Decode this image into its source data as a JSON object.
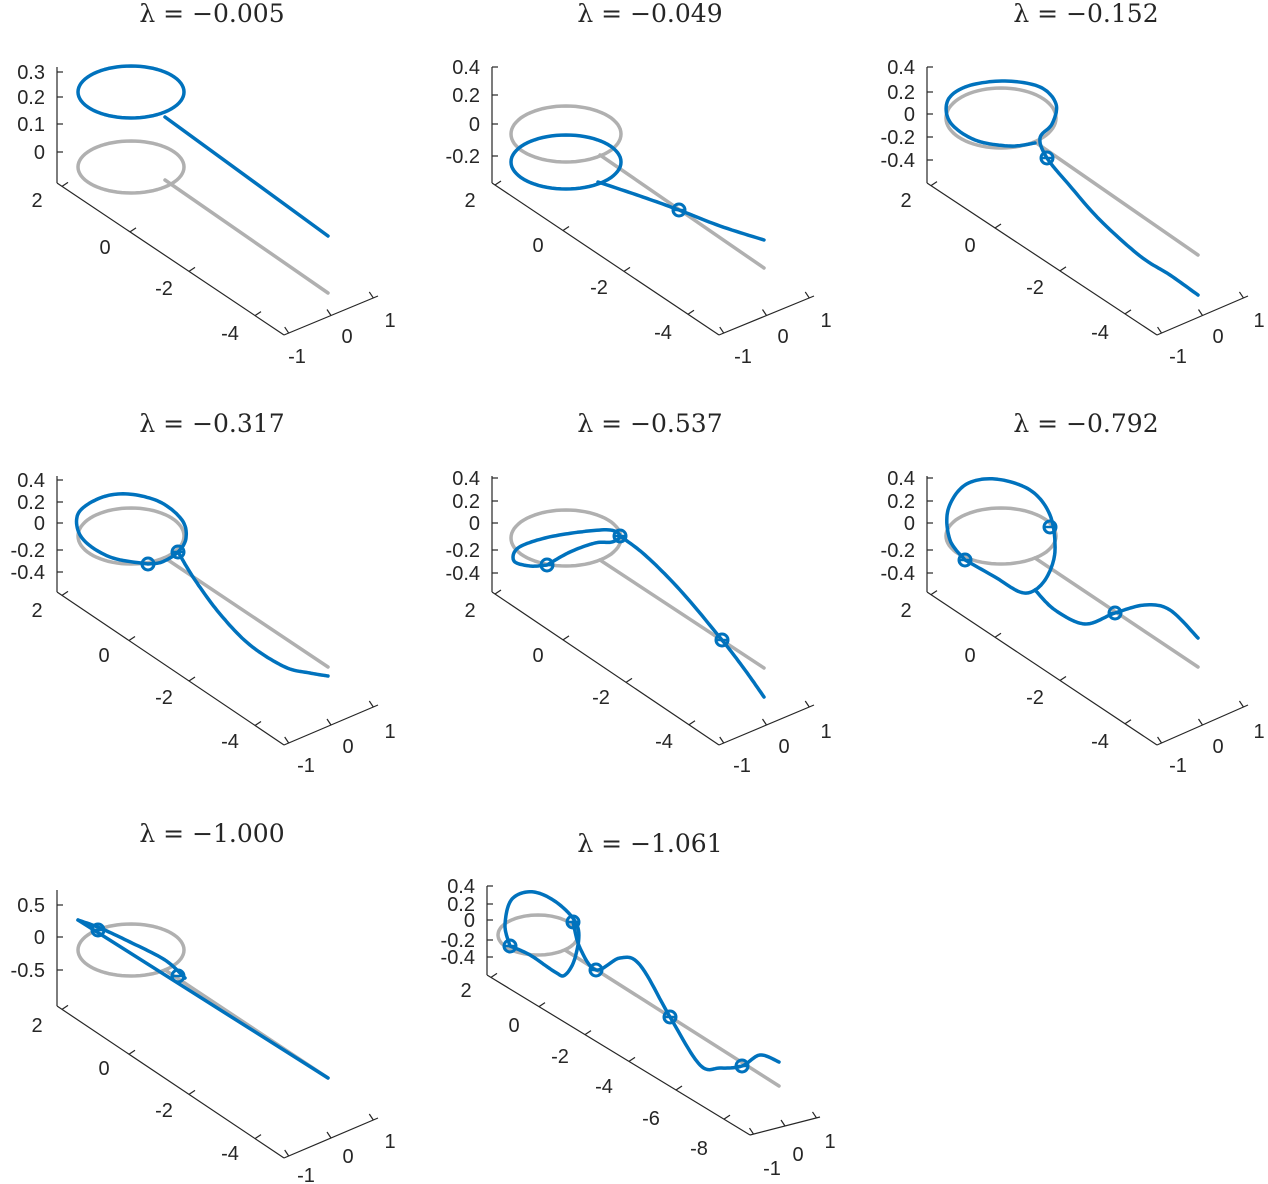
{
  "figure": {
    "colors": {
      "curve": "#0072bd",
      "reference": "#b0b0b0",
      "axis": "#262626",
      "background": "#ffffff"
    }
  },
  "chart_data": [
    {
      "type": "line3d",
      "title": "λ = −0.005",
      "x_ticks": [
        "2",
        "0",
        "-2",
        "-4"
      ],
      "y_ticks": [
        "-1",
        "0",
        "1"
      ],
      "z_ticks": [
        "0.3",
        "0.2",
        "0.1",
        "0"
      ],
      "series": [
        {
          "color": "#b0b0b0",
          "description": "reference: unit loop with straight tail"
        },
        {
          "color": "#0072bd",
          "description": "deformed curve"
        }
      ],
      "marker_count": 0
    },
    {
      "type": "line3d",
      "title": "λ = −0.049",
      "x_ticks": [
        "2",
        "0",
        "-2",
        "-4"
      ],
      "y_ticks": [
        "-1",
        "0",
        "1"
      ],
      "z_ticks": [
        "0.4",
        "0.2",
        "0",
        "-0.2"
      ],
      "series": [
        {
          "color": "#b0b0b0"
        },
        {
          "color": "#0072bd"
        }
      ],
      "marker_count": 1
    },
    {
      "type": "line3d",
      "title": "λ = −0.152",
      "x_ticks": [
        "2",
        "0",
        "-2",
        "-4"
      ],
      "y_ticks": [
        "-1",
        "0",
        "1"
      ],
      "z_ticks": [
        "0.4",
        "0.2",
        "0",
        "-0.2",
        "-0.4"
      ],
      "series": [
        {
          "color": "#b0b0b0"
        },
        {
          "color": "#0072bd"
        }
      ],
      "marker_count": 1
    },
    {
      "type": "line3d",
      "title": "λ = −0.317",
      "x_ticks": [
        "2",
        "0",
        "-2",
        "-4"
      ],
      "y_ticks": [
        "-1",
        "0",
        "1"
      ],
      "z_ticks": [
        "0.4",
        "0.2",
        "0",
        "-0.2",
        "-0.4"
      ],
      "series": [
        {
          "color": "#b0b0b0"
        },
        {
          "color": "#0072bd"
        }
      ],
      "marker_count": 2
    },
    {
      "type": "line3d",
      "title": "λ = −0.537",
      "x_ticks": [
        "2",
        "0",
        "-2",
        "-4"
      ],
      "y_ticks": [
        "-1",
        "0",
        "1"
      ],
      "z_ticks": [
        "0.4",
        "0.2",
        "0",
        "-0.2",
        "-0.4"
      ],
      "series": [
        {
          "color": "#b0b0b0"
        },
        {
          "color": "#0072bd"
        }
      ],
      "marker_count": 3
    },
    {
      "type": "line3d",
      "title": "λ = −0.792",
      "x_ticks": [
        "2",
        "0",
        "-2",
        "-4"
      ],
      "y_ticks": [
        "-1",
        "0",
        "1"
      ],
      "z_ticks": [
        "0.4",
        "0.2",
        "0",
        "-0.2",
        "-0.4"
      ],
      "series": [
        {
          "color": "#b0b0b0"
        },
        {
          "color": "#0072bd"
        }
      ],
      "marker_count": 3
    },
    {
      "type": "line3d",
      "title": "λ = −1.000",
      "x_ticks": [
        "2",
        "0",
        "-2",
        "-4"
      ],
      "y_ticks": [
        "-1",
        "0",
        "1"
      ],
      "z_ticks": [
        "0.5",
        "0",
        "-0.5"
      ],
      "series": [
        {
          "color": "#b0b0b0"
        },
        {
          "color": "#0072bd"
        }
      ],
      "marker_count": 2
    },
    {
      "type": "line3d",
      "title": "λ = −1.061",
      "x_ticks": [
        "2",
        "0",
        "-2",
        "-4",
        "-6",
        "-8"
      ],
      "y_ticks": [
        "-1",
        "0",
        "1"
      ],
      "z_ticks": [
        "0.4",
        "0.2",
        "0",
        "-0.2",
        "-0.4"
      ],
      "series": [
        {
          "color": "#b0b0b0"
        },
        {
          "color": "#0072bd"
        }
      ],
      "marker_count": 5
    }
  ]
}
